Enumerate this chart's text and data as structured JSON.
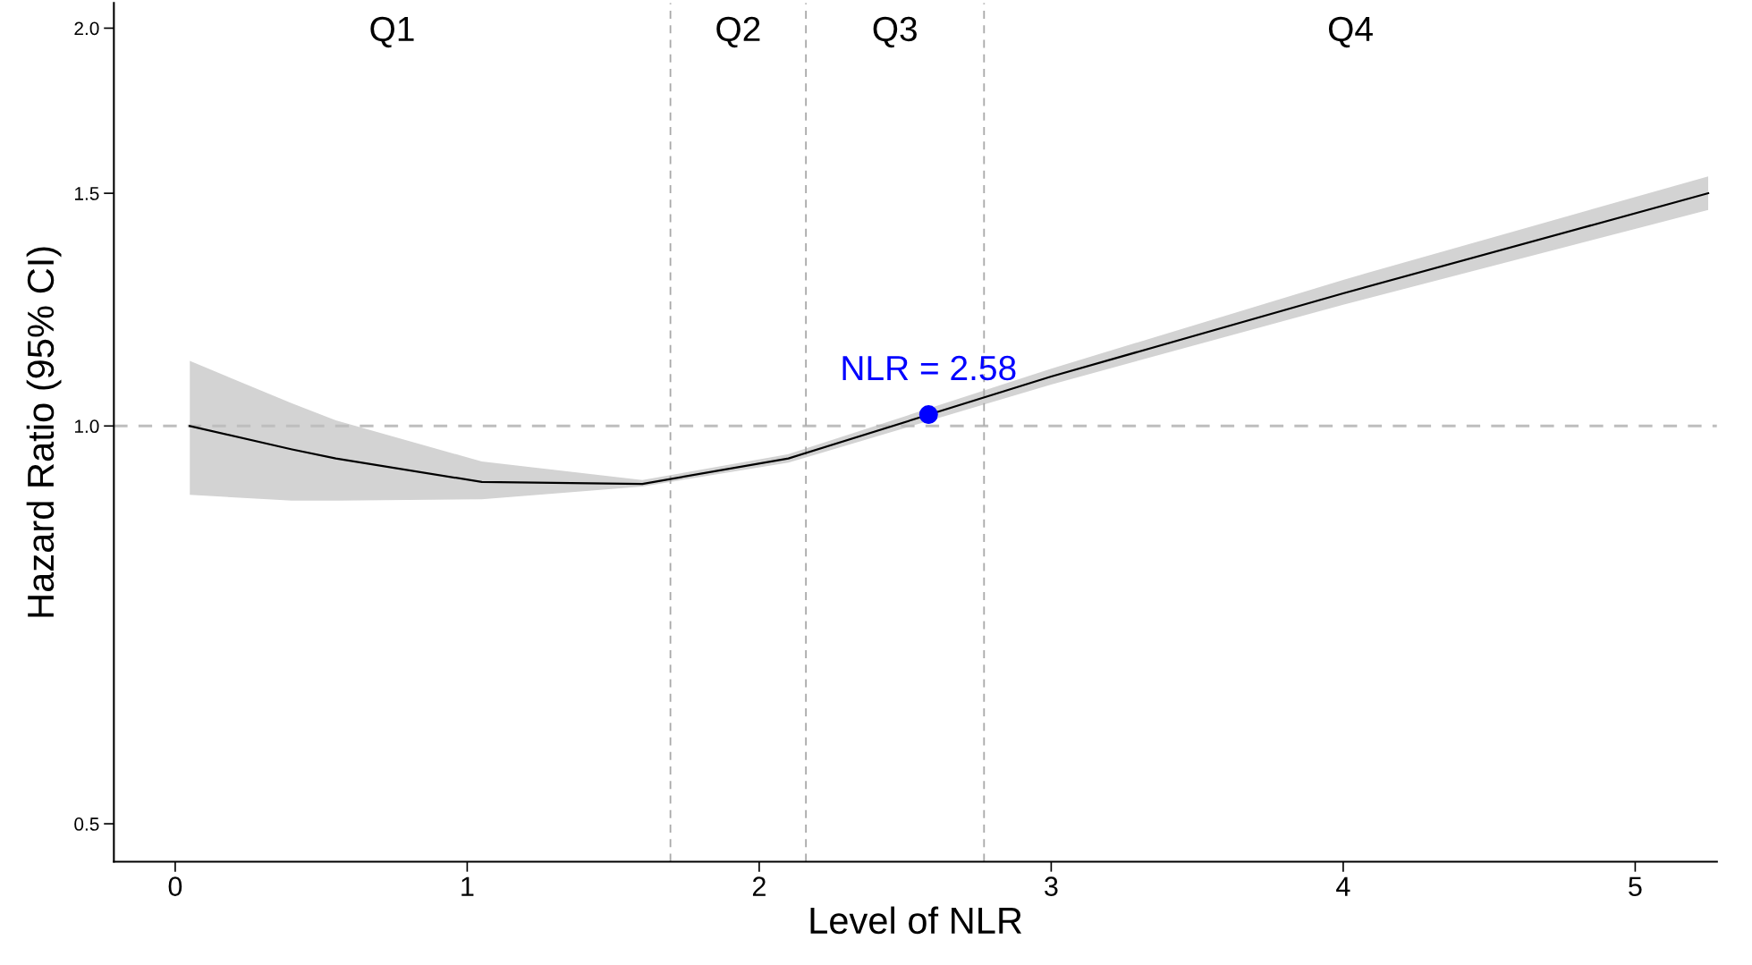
{
  "chart_data": {
    "type": "line",
    "xlabel": "Level of NLR",
    "ylabel": "Hazard Ratio (95% CI)",
    "log": "y",
    "xlim": [
      -0.21,
      5.28
    ],
    "xticks": [
      0,
      1,
      2,
      3,
      4,
      5
    ],
    "ylim": [
      0.468,
      2.09
    ],
    "yticks": [
      {
        "value": 0.5,
        "label": "0.5"
      },
      {
        "value": 1.0,
        "label": "1.0"
      },
      {
        "value": 1.5,
        "label": "1.5"
      },
      {
        "value": 2.0,
        "label": "2.0"
      }
    ],
    "grid": false,
    "legend": false,
    "series": [
      {
        "color": "#000000",
        "line_style": "solid",
        "marker": "none",
        "x": [
          0.05,
          0.4,
          0.55,
          1.05,
          1.6,
          2.1,
          3.0,
          4.0,
          5.25
        ],
        "values": [
          1.0,
          0.96,
          0.945,
          0.907,
          0.904,
          0.945,
          1.09,
          1.26,
          1.5
        ],
        "lower": [
          0.887,
          0.878,
          0.878,
          0.88,
          0.9,
          0.938,
          1.075,
          1.235,
          1.457
        ],
        "upper": [
          1.12,
          1.04,
          1.01,
          0.94,
          0.91,
          0.952,
          1.105,
          1.29,
          1.545
        ]
      },
      {
        "type": "scatter",
        "color": "#0000ff",
        "marker": "circle",
        "x": [
          2.58
        ],
        "values": [
          1.02
        ]
      }
    ],
    "ref_lines": [
      {
        "axis": "y",
        "value": 1.0,
        "color": "#bebebe",
        "line_style": "dashed"
      },
      {
        "axis": "x",
        "value": 1.696,
        "color": "#a9a9a9",
        "line_style": "dashed"
      },
      {
        "axis": "x",
        "value": 2.16,
        "color": "#a9a9a9",
        "line_style": "dashed"
      },
      {
        "axis": "x",
        "value": 2.77,
        "color": "#a9a9a9",
        "line_style": "dashed"
      }
    ],
    "annotations": [
      "Q1",
      "Q2",
      "Q3",
      "Q4",
      {
        "text": "NLR = 2.58",
        "x": 2.58,
        "y": 1.02
      }
    ]
  }
}
